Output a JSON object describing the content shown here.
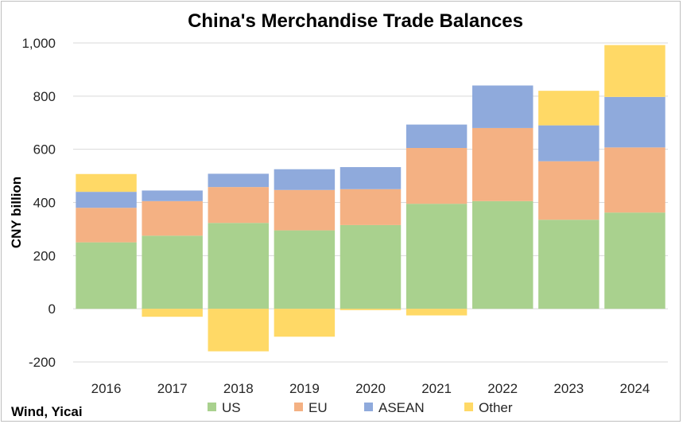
{
  "chart_data": {
    "type": "bar",
    "stacked": true,
    "title": "China's Merchandise Trade Balances",
    "ylabel": "CNY billion",
    "xlabel": "",
    "source": "Wind, Yicai",
    "categories": [
      "2016",
      "2017",
      "2018",
      "2019",
      "2020",
      "2021",
      "2022",
      "2023",
      "2024"
    ],
    "ylim": [
      -200,
      1000
    ],
    "yticks": [
      -200,
      0,
      200,
      400,
      600,
      800,
      1000
    ],
    "ytick_labels": [
      "-200",
      "0",
      "200",
      "400",
      "600",
      "800",
      "1,000"
    ],
    "grid": true,
    "legend_position": "bottom",
    "series": [
      {
        "name": "US",
        "color": "#a9d18e",
        "values": [
          250,
          275,
          323,
          295,
          315,
          395,
          405,
          335,
          362
        ]
      },
      {
        "name": "EU",
        "color": "#f4b183",
        "values": [
          130,
          130,
          135,
          152,
          135,
          210,
          275,
          220,
          245
        ]
      },
      {
        "name": "ASEAN",
        "color": "#8faadc",
        "values": [
          60,
          40,
          50,
          78,
          83,
          88,
          160,
          135,
          190
        ]
      },
      {
        "name": "Other",
        "color": "#ffd966",
        "values": [
          67,
          -30,
          -160,
          -105,
          -5,
          -25,
          0,
          130,
          195
        ]
      }
    ]
  }
}
